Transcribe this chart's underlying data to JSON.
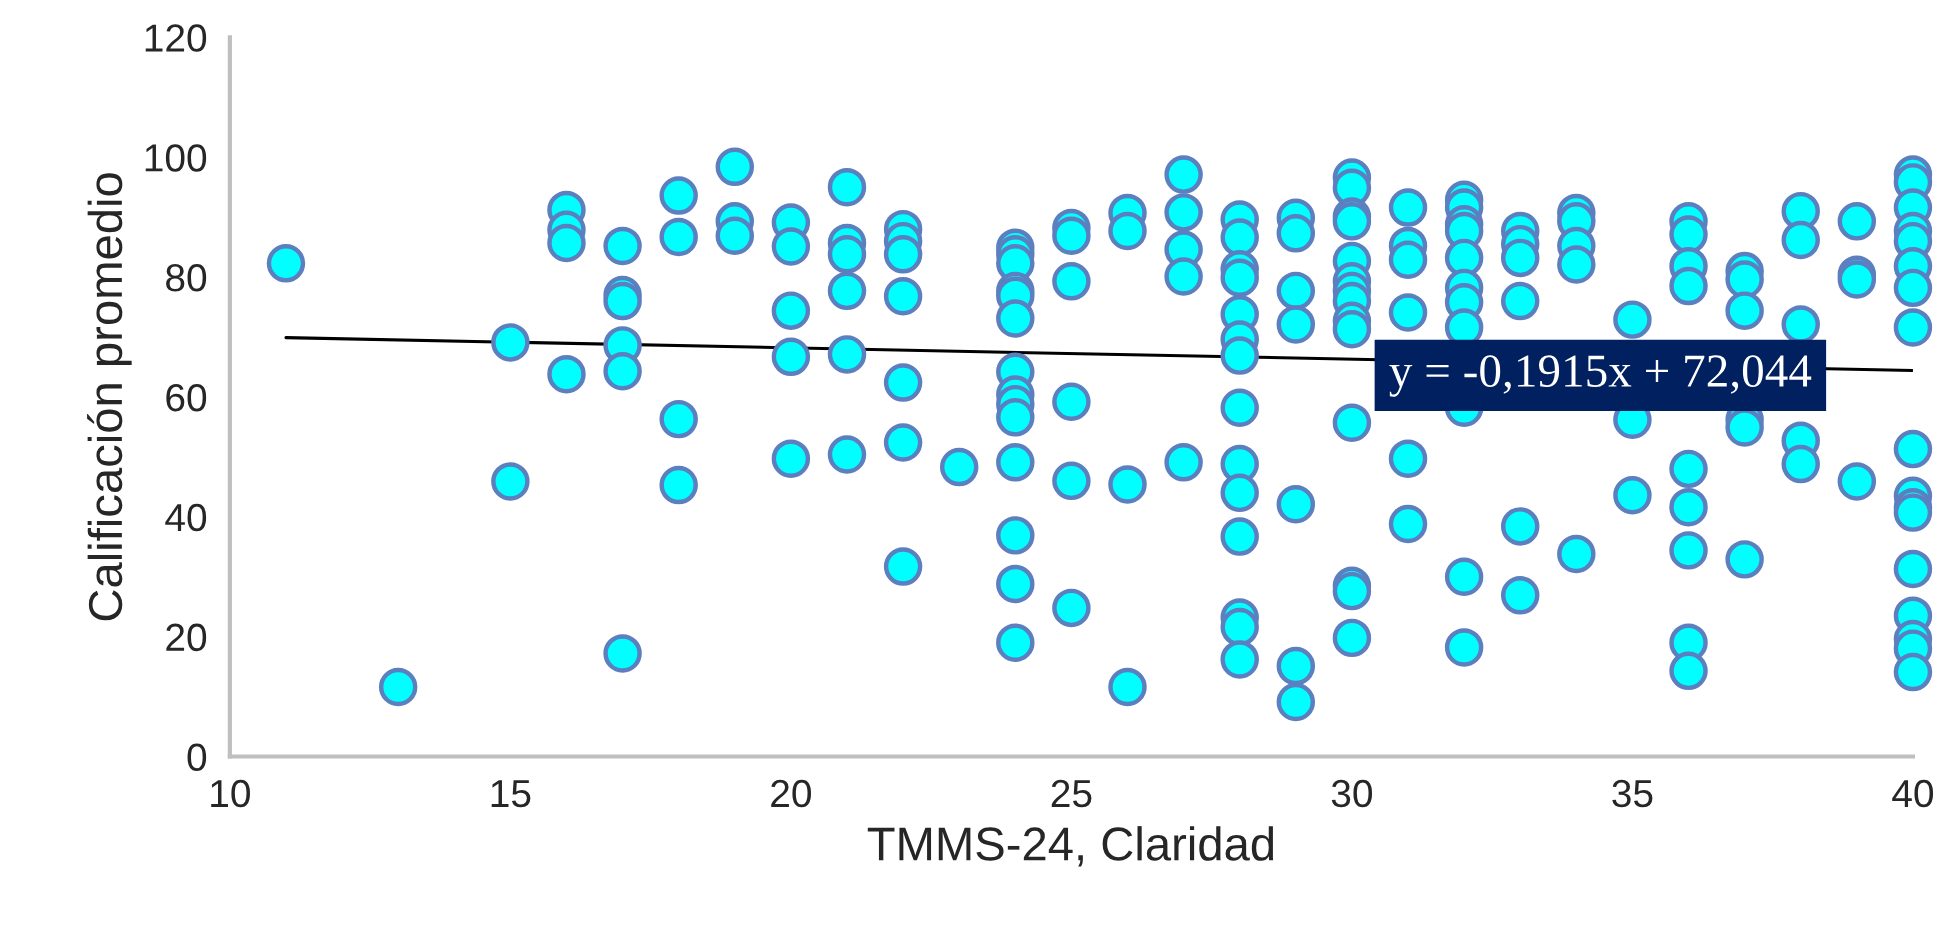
{
  "chart_data": {
    "type": "scatter",
    "xlabel": "TMMS-24, Claridad",
    "ylabel": "Calificación promedio",
    "xlim": [
      10,
      40
    ],
    "xticks": [
      10,
      15,
      20,
      25,
      30,
      35,
      40
    ],
    "ylim": [
      0,
      120
    ],
    "yticks": [
      0,
      20,
      40,
      60,
      80,
      100,
      120
    ],
    "grid": false,
    "legend": false,
    "marker": "circle",
    "annotations": [
      "y = -0,1915x + 72,044"
    ],
    "series": [
      {
        "color": "#00ffff",
        "x": [
          11,
          13,
          15,
          15,
          16,
          16,
          16,
          16,
          17,
          17,
          17,
          17,
          17,
          17,
          18,
          18,
          18,
          18,
          19,
          19,
          19,
          20,
          20,
          20,
          20,
          20,
          21,
          21,
          21,
          21,
          21,
          21,
          22,
          22,
          22,
          22,
          22,
          22,
          22,
          23,
          24,
          24,
          24,
          24,
          24,
          24,
          24,
          24,
          24,
          24,
          24,
          24,
          24,
          24,
          25,
          25,
          25,
          25,
          25,
          25,
          26,
          26,
          26,
          26,
          27,
          27,
          27,
          27,
          27,
          28,
          28,
          28,
          28,
          28,
          28,
          28,
          28,
          28,
          28,
          28,
          28,
          28,
          28,
          29,
          29,
          29,
          29,
          29,
          29,
          29,
          30,
          30,
          30,
          30,
          30,
          30,
          30,
          30,
          30,
          30,
          30,
          30,
          30,
          30,
          31,
          31,
          31,
          31,
          31,
          31,
          32,
          32,
          32,
          32,
          32,
          32,
          32,
          32,
          32,
          32,
          32,
          33,
          33,
          33,
          33,
          33,
          33,
          34,
          34,
          34,
          34,
          34,
          35,
          35,
          35,
          36,
          36,
          36,
          36,
          36,
          36,
          36,
          36,
          36,
          37,
          37,
          37,
          37,
          37,
          37,
          38,
          38,
          38,
          38,
          38,
          39,
          39,
          39,
          39,
          40,
          40,
          40,
          40,
          40,
          40,
          40,
          40,
          40,
          40,
          40,
          40,
          40,
          40,
          40,
          40,
          40
        ],
        "values": [
          82.3,
          11.6,
          69.1,
          45.9,
          91.2,
          87.9,
          85.7,
          63.8,
          85.2,
          77,
          76,
          68.6,
          64.3,
          17.2,
          93.6,
          86.7,
          56.3,
          45.3,
          98.4,
          89.3,
          86.9,
          89.1,
          85.1,
          74.4,
          66.7,
          49.7,
          95,
          85.7,
          83.8,
          77.7,
          67.1,
          50.4,
          88,
          86,
          83.8,
          76.8,
          62.4,
          52.4,
          31.7,
          48.3,
          84.9,
          83.8,
          82.3,
          77.7,
          76.9,
          73.1,
          64.2,
          60.4,
          58.8,
          56.6,
          49.1,
          36.9,
          28.8,
          19,
          88.2,
          86.9,
          79.3,
          59.2,
          46,
          24.8,
          90.7,
          87.7,
          45.4,
          11.6,
          97.1,
          90.8,
          84.6,
          80.1,
          49.1,
          89.6,
          86.6,
          81.3,
          79.9,
          73.8,
          69.6,
          66.9,
          58.2,
          48.8,
          44,
          36.7,
          23.2,
          21.6,
          16.2,
          89.9,
          87.3,
          77.7,
          72.1,
          42.1,
          15.1,
          9.1,
          96.6,
          94.9,
          90.1,
          89.3,
          82.7,
          79.3,
          77.7,
          76,
          72.7,
          71.3,
          55.7,
          28.5,
          27.6,
          19.8,
          91.6,
          85.2,
          82.9,
          74.1,
          49.7,
          38.8,
          92.9,
          91.6,
          88.8,
          87.7,
          83.2,
          78.2,
          75.8,
          71.6,
          58.2,
          30,
          18.2,
          87.7,
          85.5,
          83.2,
          76,
          38.4,
          26.9,
          90.7,
          89.3,
          85.2,
          82.1,
          33.8,
          72.9,
          56.2,
          43.6,
          89.3,
          87.1,
          81.8,
          78.5,
          48,
          41.6,
          34.4,
          19,
          14.3,
          81,
          79.6,
          74.4,
          56.2,
          54.9,
          32.9,
          91,
          86.2,
          72.1,
          52.7,
          48.8,
          89.3,
          80.4,
          79.6,
          45.9,
          97.1,
          95.8,
          91.6,
          87.7,
          86,
          81.8,
          78.2,
          71.6,
          51.3,
          43.5,
          41.6,
          40.7,
          31.3,
          23.5,
          19.6,
          18,
          14.1
        ]
      },
      {
        "type": "line",
        "color": "#000000",
        "x": [
          11,
          40
        ],
        "values": [
          69.9,
          64.4
        ],
        "marker": "none"
      }
    ]
  }
}
